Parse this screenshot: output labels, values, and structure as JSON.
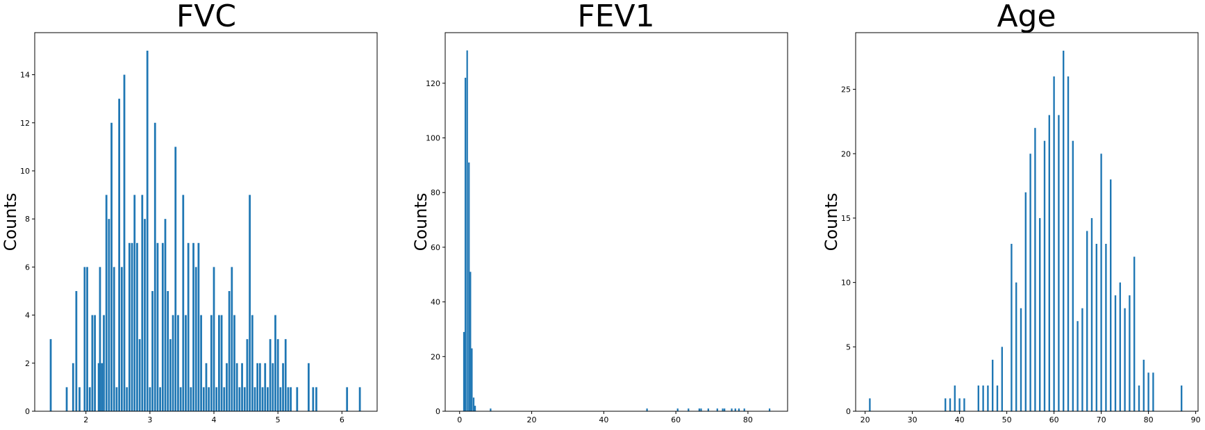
{
  "colors": {
    "bar": "#1f77b4",
    "axis": "#000000",
    "background": "#ffffff"
  },
  "chart_data": [
    {
      "type": "bar",
      "title": "FVC",
      "xlabel": "",
      "ylabel": "Counts",
      "xlim": [
        1.2,
        6.55
      ],
      "ylim": [
        0,
        15.75
      ],
      "xticks": [
        "2",
        "3",
        "4",
        "5",
        "6"
      ],
      "yticks": [
        "0",
        "2",
        "4",
        "6",
        "8",
        "10",
        "12",
        "14"
      ],
      "grid": false,
      "bin_width": 0.03,
      "bars": [
        [
          1.45,
          3
        ],
        [
          1.7,
          1
        ],
        [
          1.8,
          2
        ],
        [
          1.85,
          5
        ],
        [
          1.9,
          1
        ],
        [
          1.98,
          6
        ],
        [
          2.02,
          6
        ],
        [
          2.06,
          1
        ],
        [
          2.1,
          4
        ],
        [
          2.14,
          4
        ],
        [
          2.2,
          2
        ],
        [
          2.22,
          6
        ],
        [
          2.25,
          2
        ],
        [
          2.28,
          4
        ],
        [
          2.32,
          9
        ],
        [
          2.36,
          8
        ],
        [
          2.4,
          12
        ],
        [
          2.44,
          6
        ],
        [
          2.48,
          1
        ],
        [
          2.52,
          13
        ],
        [
          2.56,
          6
        ],
        [
          2.6,
          14
        ],
        [
          2.64,
          1
        ],
        [
          2.68,
          7
        ],
        [
          2.72,
          7
        ],
        [
          2.76,
          9
        ],
        [
          2.8,
          7
        ],
        [
          2.84,
          3
        ],
        [
          2.88,
          9
        ],
        [
          2.92,
          8
        ],
        [
          2.96,
          15
        ],
        [
          3.0,
          1
        ],
        [
          3.04,
          5
        ],
        [
          3.08,
          12
        ],
        [
          3.12,
          7
        ],
        [
          3.16,
          1
        ],
        [
          3.2,
          7
        ],
        [
          3.24,
          8
        ],
        [
          3.28,
          5
        ],
        [
          3.32,
          3
        ],
        [
          3.36,
          4
        ],
        [
          3.4,
          11
        ],
        [
          3.44,
          4
        ],
        [
          3.48,
          1
        ],
        [
          3.52,
          9
        ],
        [
          3.56,
          4
        ],
        [
          3.6,
          7
        ],
        [
          3.64,
          1
        ],
        [
          3.68,
          7
        ],
        [
          3.72,
          6
        ],
        [
          3.76,
          7
        ],
        [
          3.8,
          4
        ],
        [
          3.84,
          1
        ],
        [
          3.88,
          2
        ],
        [
          3.92,
          1
        ],
        [
          3.96,
          4
        ],
        [
          4.0,
          6
        ],
        [
          4.04,
          1
        ],
        [
          4.08,
          4
        ],
        [
          4.12,
          4
        ],
        [
          4.16,
          1
        ],
        [
          4.2,
          2
        ],
        [
          4.24,
          5
        ],
        [
          4.28,
          6
        ],
        [
          4.32,
          4
        ],
        [
          4.36,
          2
        ],
        [
          4.4,
          1
        ],
        [
          4.44,
          2
        ],
        [
          4.48,
          1
        ],
        [
          4.52,
          3
        ],
        [
          4.56,
          9
        ],
        [
          4.6,
          4
        ],
        [
          4.64,
          1
        ],
        [
          4.68,
          2
        ],
        [
          4.72,
          2
        ],
        [
          4.76,
          1
        ],
        [
          4.8,
          2
        ],
        [
          4.84,
          1
        ],
        [
          4.88,
          3
        ],
        [
          4.92,
          2
        ],
        [
          4.96,
          4
        ],
        [
          5.0,
          3
        ],
        [
          5.04,
          1
        ],
        [
          5.08,
          2
        ],
        [
          5.12,
          3
        ],
        [
          5.16,
          1
        ],
        [
          5.2,
          1
        ],
        [
          5.3,
          1
        ],
        [
          5.48,
          2
        ],
        [
          5.55,
          1
        ],
        [
          5.6,
          1
        ],
        [
          6.08,
          1
        ],
        [
          6.28,
          1
        ]
      ]
    },
    {
      "type": "bar",
      "title": "FEV1",
      "xlabel": "",
      "ylabel": "Counts",
      "xlim": [
        -4,
        91
      ],
      "ylim": [
        0,
        138.5
      ],
      "xticks": [
        "0",
        "20",
        "40",
        "60",
        "80"
      ],
      "yticks": [
        "0",
        "20",
        "40",
        "60",
        "80",
        "100",
        "120"
      ],
      "grid": false,
      "bin_width": 0.43,
      "bars": [
        [
          1.2,
          29
        ],
        [
          1.6,
          122
        ],
        [
          2.1,
          132
        ],
        [
          2.6,
          91
        ],
        [
          3.0,
          51
        ],
        [
          3.4,
          23
        ],
        [
          3.9,
          5
        ],
        [
          4.3,
          2
        ],
        [
          8.6,
          1
        ],
        [
          52.0,
          1
        ],
        [
          60.5,
          1
        ],
        [
          63.5,
          1
        ],
        [
          66.5,
          1
        ],
        [
          67.0,
          1
        ],
        [
          69.0,
          1
        ],
        [
          71.5,
          1
        ],
        [
          73.0,
          1
        ],
        [
          73.5,
          1
        ],
        [
          75.5,
          1
        ],
        [
          76.5,
          1
        ],
        [
          77.5,
          1
        ],
        [
          79.0,
          1
        ],
        [
          86.0,
          1
        ]
      ]
    },
    {
      "type": "bar",
      "title": "Age",
      "xlabel": "",
      "ylabel": "Counts",
      "xlim": [
        18,
        90.5
      ],
      "ylim": [
        0,
        29.4
      ],
      "xticks": [
        "20",
        "30",
        "40",
        "50",
        "60",
        "70",
        "80",
        "90"
      ],
      "yticks": [
        "0",
        "5",
        "10",
        "15",
        "20",
        "25"
      ],
      "grid": false,
      "bin_width": 0.35,
      "bars": [
        [
          21,
          1
        ],
        [
          37,
          1
        ],
        [
          38,
          1
        ],
        [
          39,
          2
        ],
        [
          40,
          1
        ],
        [
          41,
          1
        ],
        [
          44,
          2
        ],
        [
          45,
          2
        ],
        [
          46,
          2
        ],
        [
          47,
          4
        ],
        [
          48,
          2
        ],
        [
          49,
          5
        ],
        [
          51,
          13
        ],
        [
          52,
          10
        ],
        [
          53,
          8
        ],
        [
          54,
          17
        ],
        [
          55,
          20
        ],
        [
          56,
          22
        ],
        [
          57,
          15
        ],
        [
          58,
          21
        ],
        [
          59,
          23
        ],
        [
          60,
          26
        ],
        [
          61,
          23
        ],
        [
          62,
          28
        ],
        [
          63,
          26
        ],
        [
          64,
          21
        ],
        [
          65,
          7
        ],
        [
          66,
          8
        ],
        [
          67,
          14
        ],
        [
          68,
          15
        ],
        [
          69,
          13
        ],
        [
          70,
          20
        ],
        [
          71,
          13
        ],
        [
          72,
          18
        ],
        [
          73,
          9
        ],
        [
          74,
          10
        ],
        [
          75,
          8
        ],
        [
          76,
          9
        ],
        [
          77,
          12
        ],
        [
          78,
          2
        ],
        [
          79,
          4
        ],
        [
          80,
          3
        ],
        [
          81,
          3
        ],
        [
          87,
          2
        ]
      ]
    }
  ]
}
